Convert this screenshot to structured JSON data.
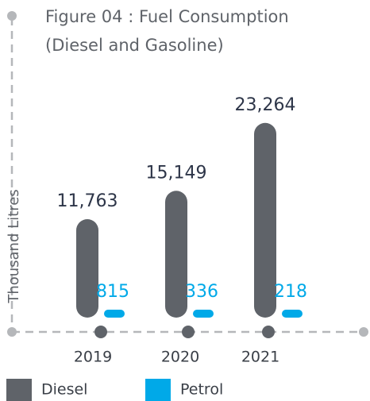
{
  "chart_data": {
    "type": "bar",
    "title": "Figure 04 : Fuel Consumption",
    "subtitle": "(Diesel and Gasoline)",
    "y_label": "Thousand  Litres",
    "categories": [
      "2019",
      "2020",
      "2021"
    ],
    "series": [
      {
        "name": "Diesel",
        "color": "#5f6369",
        "values": [
          11763,
          15149,
          23264
        ],
        "value_labels": [
          "11,763",
          "15,149",
          "23,264"
        ]
      },
      {
        "name": "Petrol",
        "color": "#00a9e8",
        "values": [
          815,
          336,
          218
        ]
      }
    ],
    "ylim": [
      0,
      24000
    ]
  }
}
